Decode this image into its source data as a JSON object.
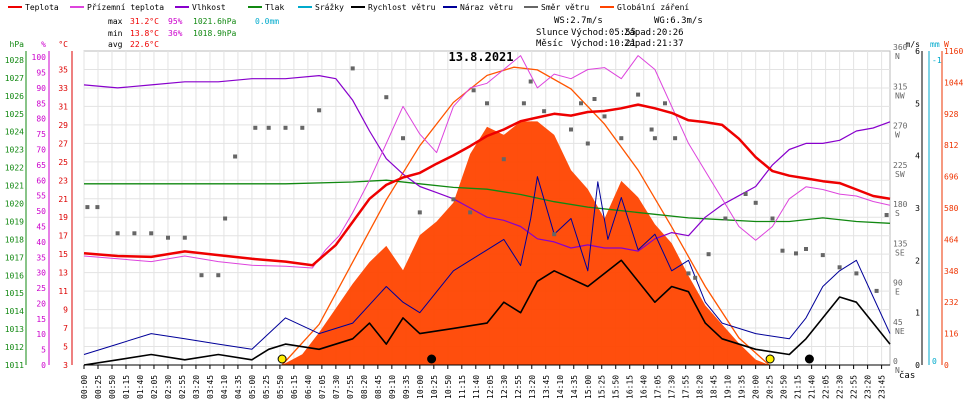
{
  "chart_data": {
    "type": "line",
    "title": "13.8.2021",
    "xlabel": "čas",
    "legend": [
      {
        "key": "temp",
        "label": "Teplota",
        "color": "#ee0000"
      },
      {
        "key": "feel",
        "label": "Přízemní teplota",
        "color": "#dd44dd"
      },
      {
        "key": "hum",
        "label": "Vlhkost",
        "color": "#8800cc"
      },
      {
        "key": "press",
        "label": "Tlak",
        "color": "#118811"
      },
      {
        "key": "rain",
        "label": "Srážky",
        "color": "#00aacc"
      },
      {
        "key": "wind",
        "label": "Rychlost větru",
        "color": "#000000"
      },
      {
        "key": "gust",
        "label": "Náraz větru",
        "color": "#000099"
      },
      {
        "key": "dir",
        "label": "Směr větru",
        "color": "#666666"
      },
      {
        "key": "solar",
        "label": "Globální záření",
        "color": "#ff4400"
      }
    ],
    "stats": {
      "max": {
        "label": "max",
        "temp": "31.2°C",
        "hum": "95%",
        "press": "1021.6hPa",
        "rain": "0.0mm"
      },
      "min": {
        "label": "min",
        "temp": "13.8°C",
        "hum": "36%",
        "press": "1018.9hPa"
      },
      "avg": {
        "label": "avg",
        "temp": "22.6°C"
      }
    },
    "info": {
      "ws": "WS:2.7m/s",
      "wg": "WG:6.3m/s",
      "sun_label": "Slunce",
      "sun_rise": "Východ:05:55",
      "sun_set": "Západ:20:26",
      "moon_label": "Měsíc",
      "moon_rise": "Východ:10:21",
      "moon_set": "Západ:21:37"
    },
    "axes": {
      "hpa": {
        "unit": "hPa",
        "ticks": [
          "1011",
          "1012",
          "1013",
          "1014",
          "1015",
          "1016",
          "1017",
          "1018",
          "1019",
          "1020",
          "1021",
          "1022",
          "1023",
          "1024",
          "1025",
          "1026",
          "1027",
          "1028"
        ],
        "range": [
          1011,
          1028.5
        ]
      },
      "pct": {
        "unit": "%",
        "ticks": [
          "0",
          "5",
          "10",
          "15",
          "20",
          "25",
          "30",
          "35",
          "40",
          "45",
          "50",
          "55",
          "60",
          "65",
          "70",
          "75",
          "80",
          "85",
          "90",
          "95",
          "100"
        ],
        "range": [
          0,
          102
        ]
      },
      "degc": {
        "unit": "°C",
        "ticks": [
          "3",
          "5",
          "7",
          "9",
          "11",
          "13",
          "15",
          "17",
          "19",
          "21",
          "23",
          "25",
          "27",
          "29",
          "31",
          "33",
          "35"
        ],
        "range": [
          3,
          37
        ]
      },
      "dir": {
        "unit": "°",
        "ticks": [
          {
            "v": "0",
            "c": "N"
          },
          {
            "v": "45",
            "c": "NE"
          },
          {
            "v": "90",
            "c": "E"
          },
          {
            "v": "135",
            "c": "SE"
          },
          {
            "v": "180",
            "c": "S"
          },
          {
            "v": "225",
            "c": "SW"
          },
          {
            "v": "270",
            "c": "W"
          },
          {
            "v": "315",
            "c": "NW"
          },
          {
            "v": "360",
            "c": "N"
          }
        ],
        "range": [
          0,
          360
        ]
      },
      "ms": {
        "unit": "m/s",
        "ticks": [
          "0",
          "1",
          "2",
          "3",
          "4",
          "5",
          "6"
        ],
        "range": [
          0,
          6
        ]
      },
      "mm": {
        "unit": "mm",
        "ticks": [
          "-1",
          "0"
        ],
        "range": [
          0,
          1
        ]
      },
      "w": {
        "unit": "W",
        "ticks": [
          "0",
          "116",
          "232",
          "348",
          "464",
          "580",
          "696",
          "812",
          "928",
          "1044",
          "1160"
        ],
        "range": [
          0,
          1160
        ]
      }
    },
    "x_ticks": [
      "00:00",
      "00:25",
      "00:50",
      "01:15",
      "01:40",
      "02:05",
      "02:30",
      "02:55",
      "03:20",
      "03:45",
      "04:10",
      "04:35",
      "05:00",
      "05:25",
      "05:50",
      "06:15",
      "06:40",
      "07:05",
      "07:30",
      "07:55",
      "08:20",
      "08:45",
      "09:10",
      "09:35",
      "10:00",
      "10:25",
      "10:50",
      "11:15",
      "11:40",
      "12:05",
      "12:30",
      "12:55",
      "13:20",
      "13:45",
      "14:10",
      "14:35",
      "15:00",
      "15:25",
      "15:50",
      "16:15",
      "16:40",
      "17:05",
      "17:30",
      "17:55",
      "18:20",
      "18:45",
      "19:10",
      "19:35",
      "20:00",
      "20:25",
      "20:50",
      "21:15",
      "21:40",
      "22:05",
      "22:30",
      "22:55",
      "23:20",
      "23:45"
    ],
    "series": {
      "temp": {
        "hours": [
          0,
          1,
          2,
          3,
          4,
          5,
          6,
          6.8,
          7.5,
          8,
          8.5,
          9,
          9.5,
          10,
          10.5,
          11,
          11.5,
          12,
          12.5,
          13,
          13.5,
          14,
          14.5,
          15,
          15.5,
          16,
          16.5,
          17,
          17.5,
          18,
          18.5,
          19,
          19.5,
          20,
          20.5,
          21,
          21.5,
          22,
          22.5,
          23,
          23.5,
          24
        ],
        "values": [
          15.1,
          14.8,
          14.7,
          15.3,
          14.9,
          14.5,
          14.2,
          13.8,
          16,
          18.5,
          21,
          22.5,
          23.3,
          23.8,
          24.8,
          25.7,
          26.7,
          27.8,
          28.5,
          29.4,
          29.8,
          30.2,
          30,
          30.4,
          30.5,
          30.8,
          31.2,
          30.8,
          30.3,
          29.5,
          29.3,
          29,
          27.5,
          25.5,
          24,
          23.5,
          23.2,
          22.9,
          22.7,
          22,
          21.3,
          21
        ]
      },
      "feel": {
        "hours": [
          0,
          1,
          2,
          3,
          4,
          5,
          6,
          6.8,
          7.2,
          7.6,
          8,
          8.5,
          9,
          9.5,
          10,
          10.5,
          11,
          11.5,
          12,
          12.5,
          13,
          13.5,
          14,
          14.5,
          15,
          15.5,
          16,
          16.5,
          17,
          17.5,
          18,
          18.5,
          19,
          19.5,
          20,
          20.5,
          21,
          21.5,
          22,
          22.5,
          23,
          23.5,
          24
        ],
        "values": [
          14.8,
          14.5,
          14.2,
          14.8,
          14.2,
          13.8,
          13.7,
          13.5,
          15.5,
          17,
          19.5,
          23,
          27,
          31,
          28,
          26,
          31,
          33,
          33.5,
          35,
          36.5,
          33,
          34.5,
          34,
          35,
          35.2,
          34,
          36.5,
          35,
          31,
          27,
          24,
          21,
          18,
          16.5,
          18,
          21,
          22.3,
          22,
          21.5,
          21.3,
          20.7,
          20.3
        ]
      },
      "hum": {
        "hours": [
          0,
          1,
          2,
          3,
          4,
          5,
          6,
          7,
          7.5,
          8,
          8.5,
          9,
          9.5,
          10,
          10.5,
          11,
          11.5,
          12,
          12.5,
          13,
          13.5,
          14,
          14.5,
          15,
          15.5,
          16,
          16.5,
          17,
          17.5,
          18,
          18.5,
          19,
          19.5,
          20,
          20.5,
          21,
          21.5,
          22,
          22.5,
          23,
          23.5,
          24
        ],
        "values": [
          91,
          90,
          91,
          92,
          92,
          93,
          93,
          94,
          93,
          86,
          76,
          67,
          62,
          58,
          56,
          54,
          51,
          48,
          47,
          45,
          41,
          40,
          38,
          39,
          38,
          38,
          37,
          41,
          43,
          42,
          48,
          52,
          55,
          58,
          65,
          70,
          72,
          72,
          73,
          76,
          77,
          79
        ]
      },
      "press": {
        "hours": [
          0,
          2,
          4,
          6,
          8,
          9,
          10,
          11,
          12,
          13,
          14,
          15,
          16,
          17,
          18,
          19,
          20,
          21,
          22,
          23,
          24
        ],
        "values": [
          1021.1,
          1021.1,
          1021.1,
          1021.1,
          1021.2,
          1021.3,
          1021.1,
          1020.9,
          1020.8,
          1020.5,
          1020.1,
          1019.8,
          1019.6,
          1019.4,
          1019.2,
          1019.1,
          1019.0,
          1019.0,
          1019.2,
          1019.0,
          1018.9
        ]
      },
      "wind": {
        "hours": [
          0,
          1,
          2,
          3,
          4,
          5,
          5.5,
          6,
          7,
          8,
          8.5,
          9,
          9.5,
          10,
          11,
          12,
          12.5,
          13,
          13.5,
          14,
          15,
          16,
          17,
          17.5,
          18,
          18.5,
          19,
          20,
          21,
          21.5,
          22,
          22.5,
          23,
          23.5,
          24
        ],
        "values": [
          0,
          0.1,
          0.2,
          0.1,
          0.2,
          0.1,
          0.3,
          0.4,
          0.3,
          0.5,
          0.8,
          0.4,
          0.9,
          0.6,
          0.7,
          0.8,
          1.2,
          1.0,
          1.6,
          1.8,
          1.5,
          2.0,
          1.2,
          1.5,
          1.4,
          0.8,
          0.5,
          0.3,
          0.2,
          0.5,
          0.9,
          1.3,
          1.2,
          0.8,
          0.4
        ]
      },
      "gust": {
        "hours": [
          0,
          1,
          2,
          3,
          4,
          5,
          6,
          7,
          8,
          9,
          9.5,
          10,
          11,
          12,
          12.5,
          13,
          13.3,
          13.5,
          14,
          14.5,
          15,
          15.3,
          15.6,
          16,
          16.5,
          17,
          17.5,
          18,
          18.5,
          19,
          20,
          21,
          21.5,
          22,
          22.5,
          23,
          23.5,
          24
        ],
        "values": [
          0.2,
          0.4,
          0.6,
          0.5,
          0.4,
          0.3,
          0.9,
          0.6,
          0.8,
          1.5,
          1.2,
          1.0,
          1.8,
          2.2,
          2.4,
          1.9,
          2.8,
          3.6,
          2.5,
          2.8,
          1.8,
          3.5,
          2.4,
          3.2,
          2.2,
          2.5,
          1.8,
          2.0,
          1.2,
          0.8,
          0.6,
          0.5,
          0.9,
          1.5,
          1.8,
          2.0,
          1.3,
          0.6
        ]
      },
      "dir": {
        "points": [
          [
            0.1,
            181
          ],
          [
            0.4,
            181
          ],
          [
            1,
            151
          ],
          [
            1.5,
            151
          ],
          [
            2,
            151
          ],
          [
            2.5,
            146
          ],
          [
            3,
            146
          ],
          [
            3.5,
            103
          ],
          [
            4,
            103
          ],
          [
            4.2,
            168
          ],
          [
            4.5,
            239
          ],
          [
            5.1,
            272
          ],
          [
            5.5,
            272
          ],
          [
            6,
            272
          ],
          [
            6.5,
            272
          ],
          [
            7,
            292
          ],
          [
            8,
            340
          ],
          [
            9,
            307
          ],
          [
            9.5,
            260
          ],
          [
            10,
            175
          ],
          [
            11,
            190
          ],
          [
            11.5,
            175
          ],
          [
            11.6,
            315
          ],
          [
            12,
            300
          ],
          [
            12.5,
            236
          ],
          [
            13.1,
            300
          ],
          [
            13.3,
            325
          ],
          [
            13.7,
            291
          ],
          [
            14,
            150
          ],
          [
            14.5,
            270
          ],
          [
            14.8,
            300
          ],
          [
            15,
            254
          ],
          [
            15.2,
            305
          ],
          [
            15.5,
            285
          ],
          [
            16,
            260
          ],
          [
            16.5,
            310
          ],
          [
            16.9,
            270
          ],
          [
            17,
            260
          ],
          [
            17.3,
            300
          ],
          [
            17.6,
            260
          ],
          [
            18,
            105
          ],
          [
            18.2,
            100
          ],
          [
            18.6,
            127
          ],
          [
            19.1,
            168
          ],
          [
            19.7,
            196
          ],
          [
            20,
            186
          ],
          [
            20.5,
            168
          ],
          [
            20.8,
            131
          ],
          [
            21.2,
            128
          ],
          [
            21.5,
            133
          ],
          [
            22,
            126
          ],
          [
            22.5,
            112
          ],
          [
            23,
            105
          ],
          [
            23.6,
            85
          ],
          [
            23.9,
            172
          ]
        ]
      },
      "solar": {
        "hours": [
          0,
          5.9,
          6.5,
          7,
          7.5,
          8,
          8.5,
          9,
          9.5,
          10,
          10.5,
          11,
          11.5,
          12,
          12.5,
          13,
          13.5,
          14,
          14.5,
          15,
          15.5,
          16,
          16.5,
          17,
          17.5,
          18,
          18.5,
          19,
          19.5,
          20,
          20.4,
          24
        ],
        "values": [
          0,
          0,
          40,
          120,
          210,
          300,
          380,
          440,
          350,
          480,
          530,
          600,
          780,
          880,
          850,
          900,
          900,
          850,
          720,
          650,
          540,
          680,
          620,
          520,
          450,
          330,
          220,
          150,
          80,
          20,
          0,
          0
        ]
      },
      "solar_clear": {
        "hours": [
          5.9,
          7,
          8,
          9,
          10,
          11,
          12,
          12.8,
          13.5,
          14.5,
          15.5,
          16.5,
          17.5,
          18.5,
          19.5,
          20.4
        ],
        "values": [
          0,
          150,
          380,
          610,
          810,
          970,
          1070,
          1100,
          1090,
          1020,
          890,
          720,
          510,
          290,
          100,
          0
        ]
      }
    }
  }
}
